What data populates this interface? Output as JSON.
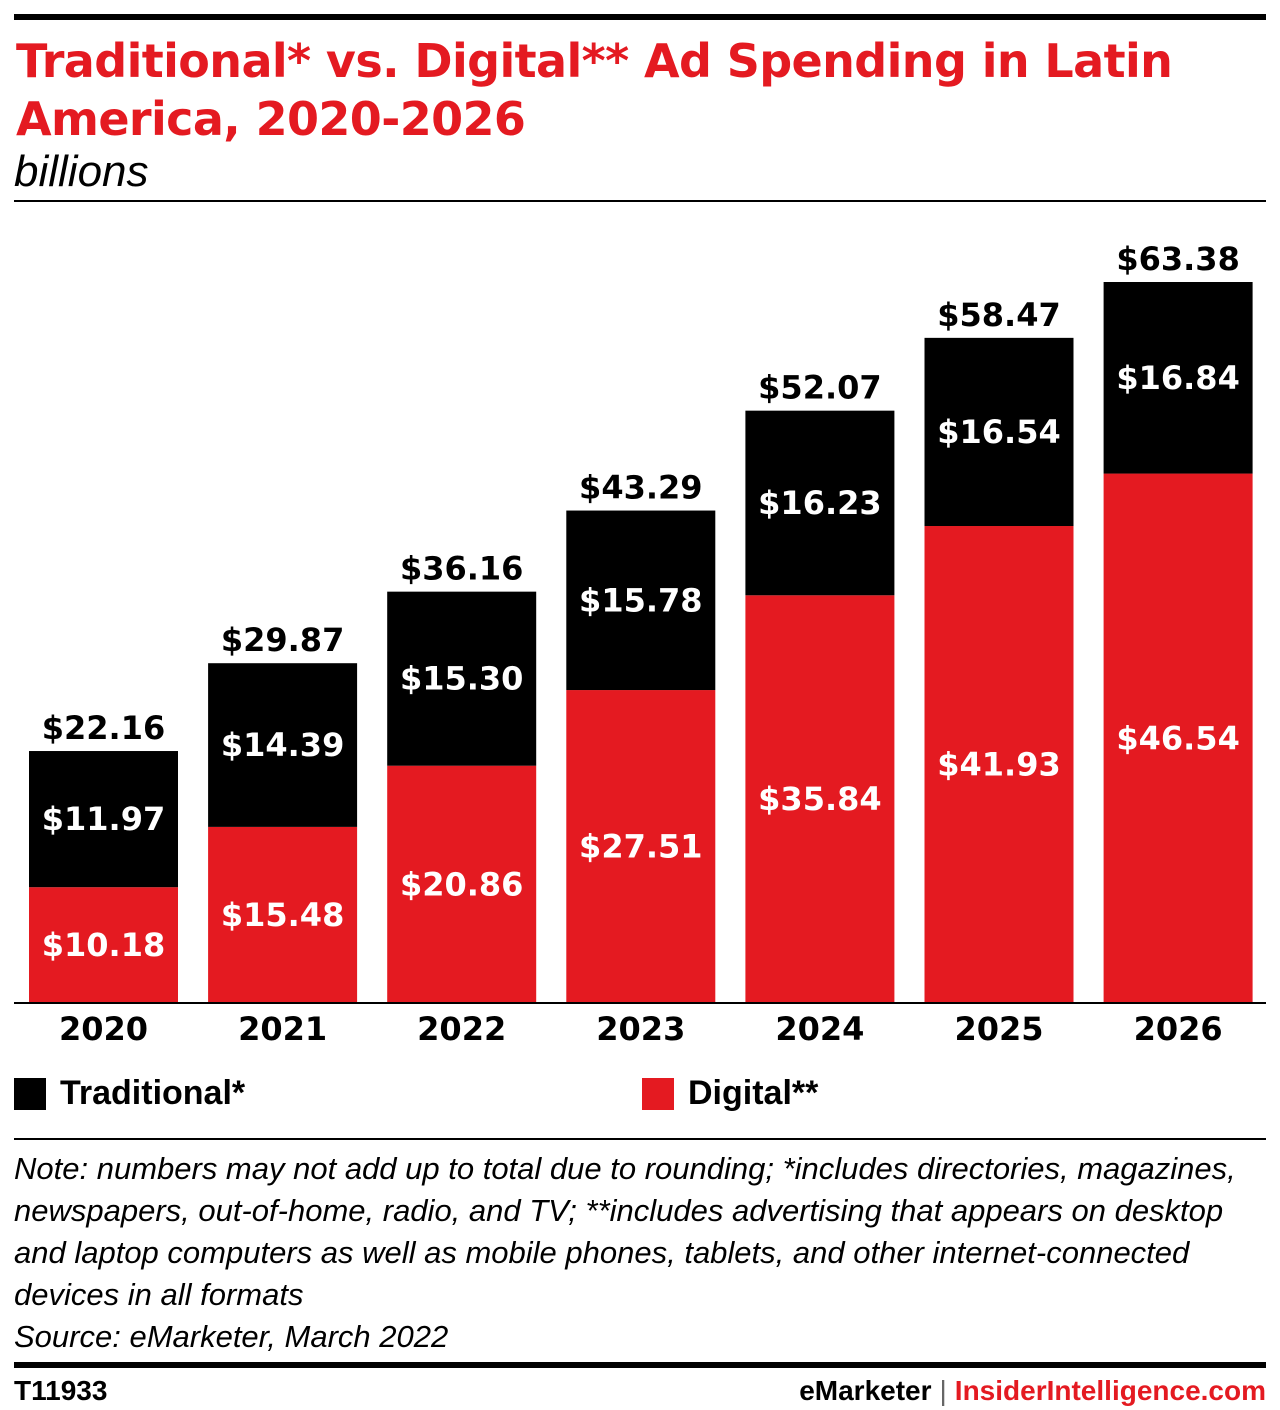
{
  "header": {
    "title": "Traditional* vs. Digital** Ad Spending in Latin America, 2020-2026",
    "subtitle": "billions"
  },
  "colors": {
    "traditional": "#000000",
    "digital": "#e41a21"
  },
  "chart_data": {
    "type": "bar",
    "stacked": true,
    "categories": [
      "2020",
      "2021",
      "2022",
      "2023",
      "2024",
      "2025",
      "2026"
    ],
    "series": [
      {
        "name": "Digital**",
        "values": [
          10.18,
          15.48,
          20.86,
          27.51,
          35.84,
          41.93,
          46.54
        ],
        "labels": [
          "$10.18",
          "$15.48",
          "$20.86",
          "$27.51",
          "$35.84",
          "$41.93",
          "$46.54"
        ]
      },
      {
        "name": "Traditional*",
        "values": [
          11.97,
          14.39,
          15.3,
          15.78,
          16.23,
          16.54,
          16.84
        ],
        "labels": [
          "$11.97",
          "$14.39",
          "$15.30",
          "$15.78",
          "$16.23",
          "$16.54",
          "$16.84"
        ]
      }
    ],
    "totals": [
      22.16,
      29.87,
      36.16,
      43.29,
      52.07,
      58.47,
      63.38
    ],
    "total_labels": [
      "$22.16",
      "$29.87",
      "$36.16",
      "$43.29",
      "$52.07",
      "$58.47",
      "$63.38"
    ],
    "ylim": [
      0,
      63.38
    ],
    "grid": false,
    "legend_position": "bottom"
  },
  "legend": {
    "traditional_label": "Traditional*",
    "digital_label": "Digital**"
  },
  "notes": {
    "note": "Note: numbers may not add up to total due to rounding; *includes directories, magazines, newspapers, out-of-home, radio, and TV; **includes advertising that appears on desktop and laptop computers as well as mobile phones, tablets, and other internet-connected devices in all formats",
    "source": "Source: eMarketer, March 2022"
  },
  "footer": {
    "chart_id": "T11933",
    "brand_emarketer": "eMarketer",
    "brand_separator": "|",
    "brand_insider": "InsiderIntelligence.com"
  }
}
